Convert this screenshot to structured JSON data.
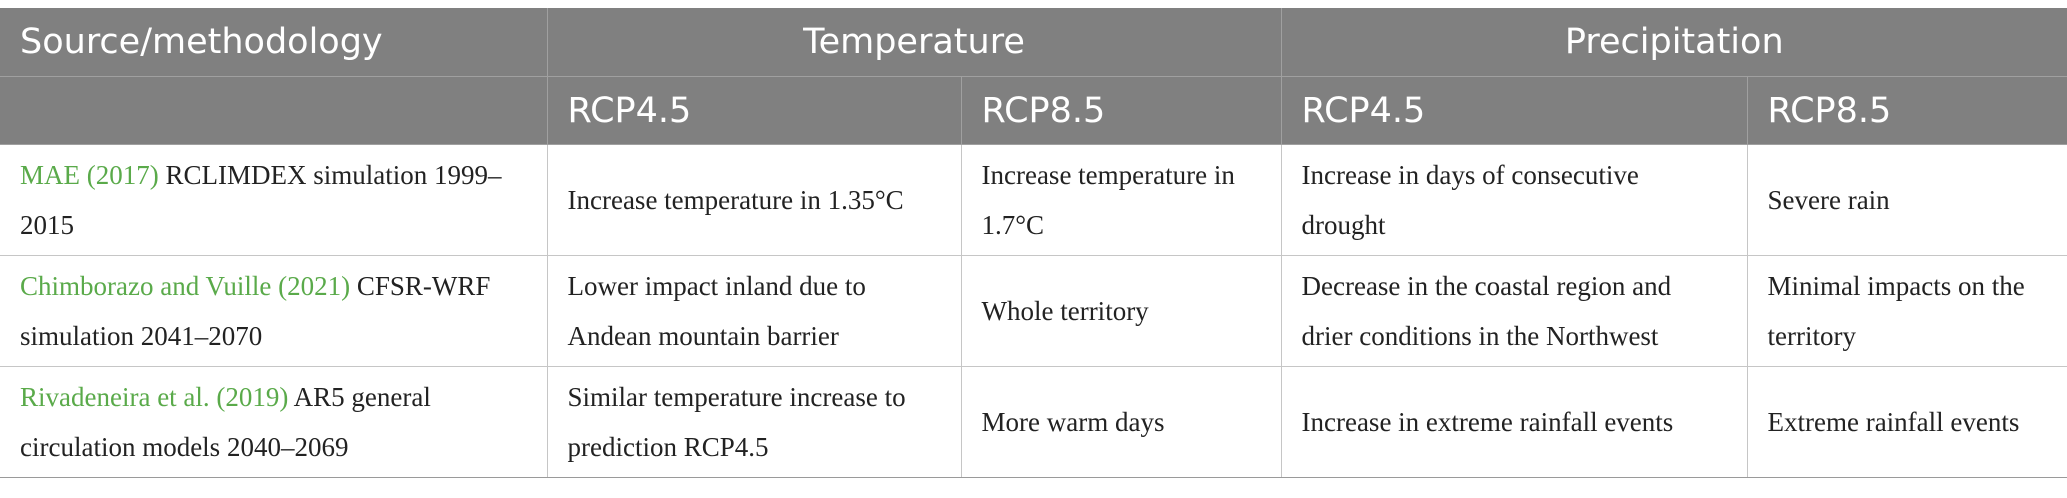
{
  "table": {
    "header": {
      "source": "Source/methodology",
      "temperature": "Temperature",
      "precipitation": "Precipitation",
      "temp_rcp45": "RCP4.5",
      "temp_rcp85": "RCP8.5",
      "precip_rcp45": "RCP4.5",
      "precip_rcp85": "RCP8.5"
    },
    "rows": [
      {
        "ref": "MAE (2017)",
        "method": " RCLIMDEX simulation 1999–2015",
        "temp_rcp45": "Increase temperature in 1.35°C",
        "temp_rcp85": "Increase temperature in 1.7°C",
        "precip_rcp45": "Increase in days of consecutive drought",
        "precip_rcp85": "Severe rain"
      },
      {
        "ref": "Chimborazo and Vuille (2021)",
        "method": " CFSR-WRF simulation 2041–2070",
        "temp_rcp45": "Lower impact inland due to Andean mountain barrier",
        "temp_rcp85": "Whole territory",
        "precip_rcp45": "Decrease in the coastal region and drier conditions in the Northwest",
        "precip_rcp85": "Minimal impacts on the territory"
      },
      {
        "ref": "Rivadeneira et al. (2019)",
        "method": " AR5 general circulation models 2040–2069",
        "temp_rcp45": "Similar temperature increase to prediction RCP4.5",
        "temp_rcp85": "More warm days",
        "precip_rcp45": "Increase in extreme rainfall events",
        "precip_rcp85": "Extreme rainfall events"
      }
    ]
  },
  "colors": {
    "header_bg": "#808080",
    "header_text": "#ffffff",
    "link": "#5aaa4a",
    "body_text": "#222222",
    "border": "#c6c6c6"
  }
}
